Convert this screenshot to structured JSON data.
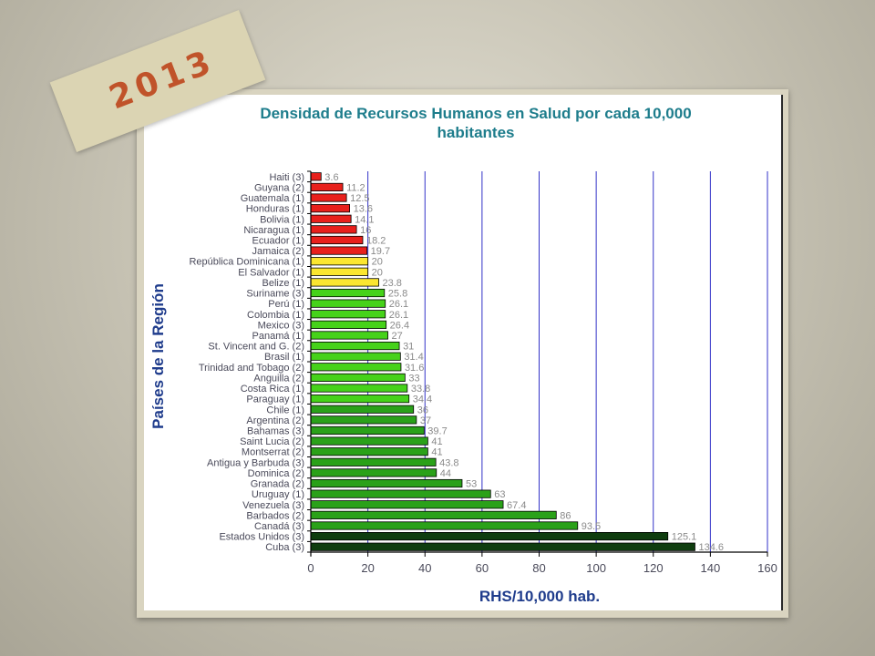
{
  "banner": {
    "year": "2013"
  },
  "chart_data": {
    "type": "bar",
    "orientation": "horizontal",
    "title": "Densidad de Recursos Humanos en Salud por cada 10,000 habitantes",
    "title_lines": [
      "Densidad de Recursos Humanos en Salud por cada 10,000",
      "habitantes"
    ],
    "xlabel": "RHS/10,000 hab.",
    "ylabel": "Países de la Región",
    "xlim": [
      0,
      160
    ],
    "xticks": [
      0,
      20,
      40,
      60,
      80,
      100,
      120,
      140,
      160
    ],
    "grid": "vertical",
    "categories": [
      "Haiti (3)",
      "Guyana  (2)",
      "Guatemala (1)",
      "Honduras (1)",
      "Bolivia (1)",
      "Nicaragua (1)",
      "Ecuador (1)",
      "Jamaica (2)",
      "República Dominicana (1)",
      "El Salvador (1)",
      "Belize (1)",
      "Suriname (3)",
      "Perú (1)",
      "Colombia (1)",
      "Mexico (3)",
      "Panamá (1)",
      "St. Vincent and G. (2)",
      "Brasil (1)",
      "Trinidad and Tobago (2)",
      "Anguilla (2)",
      "Costa Rica (1)",
      "Paraguay (1)",
      "Chile (1)",
      "Argentina (2)",
      "Bahamas (3)",
      "Saint Lucia (2)",
      "Montserrat (2)",
      "Antigua y Barbuda (3)",
      "Dominica (2)",
      "Granada (2)",
      "Uruguay (1)",
      "Venezuela (3)",
      "Barbados (2)",
      "Canadá (3)",
      "Estados Unidos (3)",
      "Cuba (3)"
    ],
    "values": [
      3.6,
      11.2,
      12.5,
      13.6,
      14.1,
      16,
      18.2,
      19.7,
      20,
      20,
      23.8,
      25.8,
      26.1,
      26.1,
      26.4,
      27,
      31,
      31.4,
      31.6,
      33,
      33.8,
      34.4,
      36,
      37,
      39.7,
      41,
      41,
      43.8,
      44,
      53,
      63,
      67.4,
      86,
      93.5,
      125.1,
      134.6
    ],
    "value_labels": [
      "3.6",
      "11.2",
      "12.5",
      "13.6",
      "14.1",
      "16",
      "18.2",
      "19.7",
      "20",
      "20",
      "23.8",
      "25.8",
      "26.1",
      "26.1",
      "26.4",
      "27",
      "31",
      "31.4",
      "31.6",
      "33",
      "33.8",
      "34.4",
      "36",
      "37",
      "39.7",
      "41",
      "41",
      "43.8",
      "44",
      "53",
      "63",
      "67.4",
      "86",
      "93.5",
      "125.1",
      "134.6"
    ],
    "colors": [
      "#e8201c",
      "#e8201c",
      "#e8201c",
      "#e8201c",
      "#e8201c",
      "#e8201c",
      "#e8201c",
      "#e8201c",
      "#fbe630",
      "#fbe630",
      "#fbe630",
      "#46d21a",
      "#46d21a",
      "#46d21a",
      "#46d21a",
      "#46d21a",
      "#46d21a",
      "#46d21a",
      "#46d21a",
      "#46d21a",
      "#46d21a",
      "#46d21a",
      "#2aa119",
      "#2aa119",
      "#2aa119",
      "#2aa119",
      "#2aa119",
      "#2aa119",
      "#2aa119",
      "#2aa119",
      "#2aa119",
      "#2aa119",
      "#2aa119",
      "#2aa119",
      "#0f3d0f",
      "#0f3d0f"
    ],
    "palette": {
      "title": "#1e7d8c",
      "axis_label": "#1f3c8c",
      "grid": "#3232c8",
      "tick_text": "#4a4a5a",
      "value_text": "#8a8a8a"
    }
  }
}
